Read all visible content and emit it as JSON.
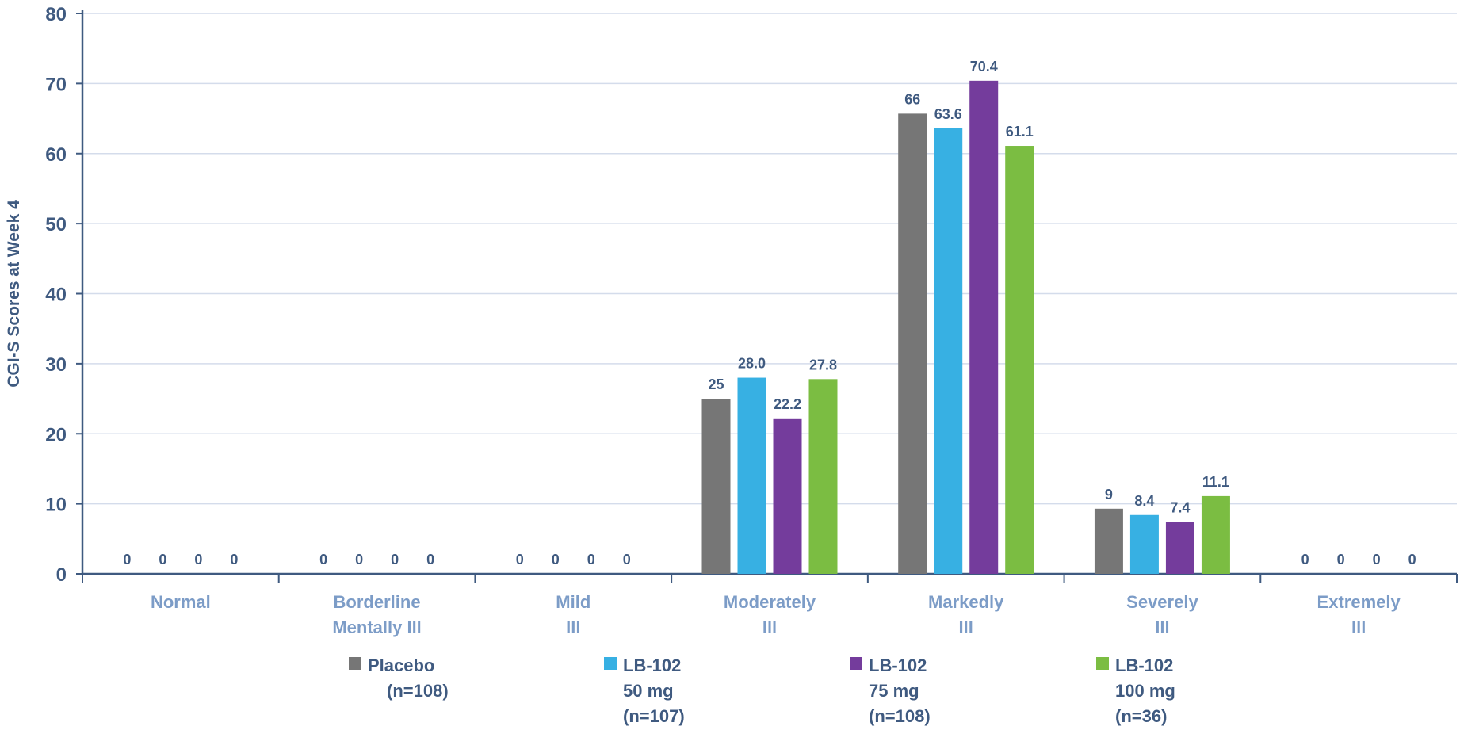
{
  "chart_data": {
    "type": "bar",
    "ylabel": "CGI-S Scores at Week 4",
    "ylim": [
      0,
      80
    ],
    "yticks": [
      "0",
      "10",
      "20",
      "30",
      "40",
      "50",
      "60",
      "70",
      "80"
    ],
    "grid": true,
    "legend_position": "bottom",
    "categories": [
      [
        "Normal"
      ],
      [
        "Borderline",
        "Mentally Ill"
      ],
      [
        "Mild",
        "Ill"
      ],
      [
        "Moderately",
        "Ill"
      ],
      [
        "Markedly",
        "Ill"
      ],
      [
        "Severely",
        "Ill"
      ],
      [
        "Extremely",
        "Ill"
      ]
    ],
    "series": [
      {
        "name": "Placebo (n=108)",
        "legend_lines": [
          "Placebo",
          "(n=108)"
        ],
        "color": "#767676",
        "values": [
          0,
          0,
          0,
          25,
          65.7,
          9.3,
          0
        ],
        "labels": [
          "0",
          "0",
          "0",
          "25",
          "66",
          "9",
          "0"
        ]
      },
      {
        "name": "LB-102 50 mg (n=107)",
        "legend_lines": [
          "LB-102",
          "50 mg",
          "(n=107)"
        ],
        "color": "#37b0e3",
        "values": [
          0,
          0,
          0,
          28.0,
          63.6,
          8.4,
          0
        ],
        "labels": [
          "0",
          "0",
          "0",
          "28.0",
          "63.6",
          "8.4",
          "0"
        ]
      },
      {
        "name": "LB-102 75 mg (n=108)",
        "legend_lines": [
          "LB-102",
          "75 mg",
          "(n=108)"
        ],
        "color": "#743c9c",
        "values": [
          0,
          0,
          0,
          22.2,
          70.4,
          7.4,
          0
        ],
        "labels": [
          "0",
          "0",
          "0",
          "22.2",
          "70.4",
          "7.4",
          "0"
        ]
      },
      {
        "name": "LB-102 100 mg (n=36)",
        "legend_lines": [
          "LB-102",
          "100 mg",
          "(n=36)"
        ],
        "color": "#7bbd42",
        "values": [
          0,
          0,
          0,
          27.8,
          61.1,
          11.1,
          0
        ],
        "labels": [
          "0",
          "0",
          "0",
          "27.8",
          "61.1",
          "11.1",
          "0"
        ]
      }
    ]
  }
}
